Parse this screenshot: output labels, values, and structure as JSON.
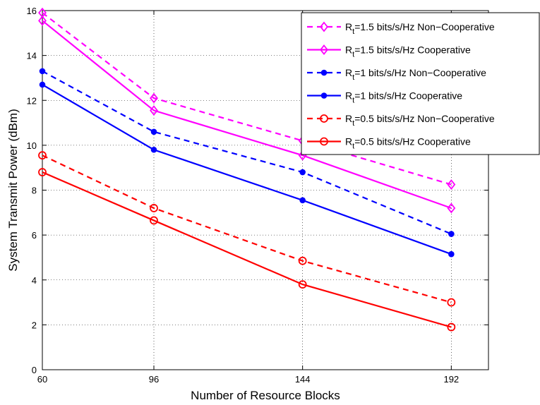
{
  "chart_data": {
    "type": "line",
    "xlabel": "Number of Resource Blocks",
    "ylabel": "System Transmit Power (dBm)",
    "x": [
      60,
      96,
      144,
      192
    ],
    "xlim": [
      60,
      204
    ],
    "ylim": [
      0,
      16
    ],
    "xticks": [
      60,
      96,
      144,
      192
    ],
    "yticks": [
      0,
      2,
      4,
      6,
      8,
      10,
      12,
      14,
      16
    ],
    "grid": true,
    "legend_position": "top-right",
    "series": [
      {
        "name": "R_t=1.5 bits/s/Hz Non-Cooperative",
        "legend_prefix": "R",
        "legend_sub": "t",
        "legend_rest": "=1.5 bits/s/Hz Non−Cooperative",
        "color": "#ff00ff",
        "dash": true,
        "marker": "diamond",
        "values": [
          15.9,
          12.1,
          10.2,
          8.25
        ]
      },
      {
        "name": "R_t=1.5 bits/s/Hz Cooperative",
        "legend_prefix": "R",
        "legend_sub": "t",
        "legend_rest": "=1.5 bits/s/Hz Cooperative",
        "color": "#ff00ff",
        "dash": false,
        "marker": "diamond",
        "values": [
          15.55,
          11.55,
          9.55,
          7.2
        ]
      },
      {
        "name": "R_t=1 bits/s/Hz Non-Cooperative",
        "legend_prefix": "R",
        "legend_sub": "t",
        "legend_rest": "=1 bits/s/Hz Non−Cooperative",
        "color": "#0000ff",
        "dash": true,
        "marker": "dot",
        "values": [
          13.3,
          10.6,
          8.8,
          6.05
        ]
      },
      {
        "name": "R_t=1 bits/s/Hz Cooperative",
        "legend_prefix": "R",
        "legend_sub": "t",
        "legend_rest": "=1 bits/s/Hz Cooperative",
        "color": "#0000ff",
        "dash": false,
        "marker": "dot",
        "values": [
          12.7,
          9.8,
          7.55,
          5.15
        ]
      },
      {
        "name": "R_t=0.5 bits/s/Hz Non-Cooperative",
        "legend_prefix": "R",
        "legend_sub": "t",
        "legend_rest": "=0.5 bits/s/Hz Non−Cooperative",
        "color": "#ff0000",
        "dash": true,
        "marker": "circle",
        "values": [
          9.55,
          7.2,
          4.85,
          3.0
        ]
      },
      {
        "name": "R_t=0.5 bits/s/Hz Cooperative",
        "legend_prefix": "R",
        "legend_sub": "t",
        "legend_rest": "=0.5 bits/s/Hz Cooperative",
        "color": "#ff0000",
        "dash": false,
        "marker": "circle",
        "values": [
          8.8,
          6.65,
          3.8,
          1.9
        ]
      }
    ]
  }
}
